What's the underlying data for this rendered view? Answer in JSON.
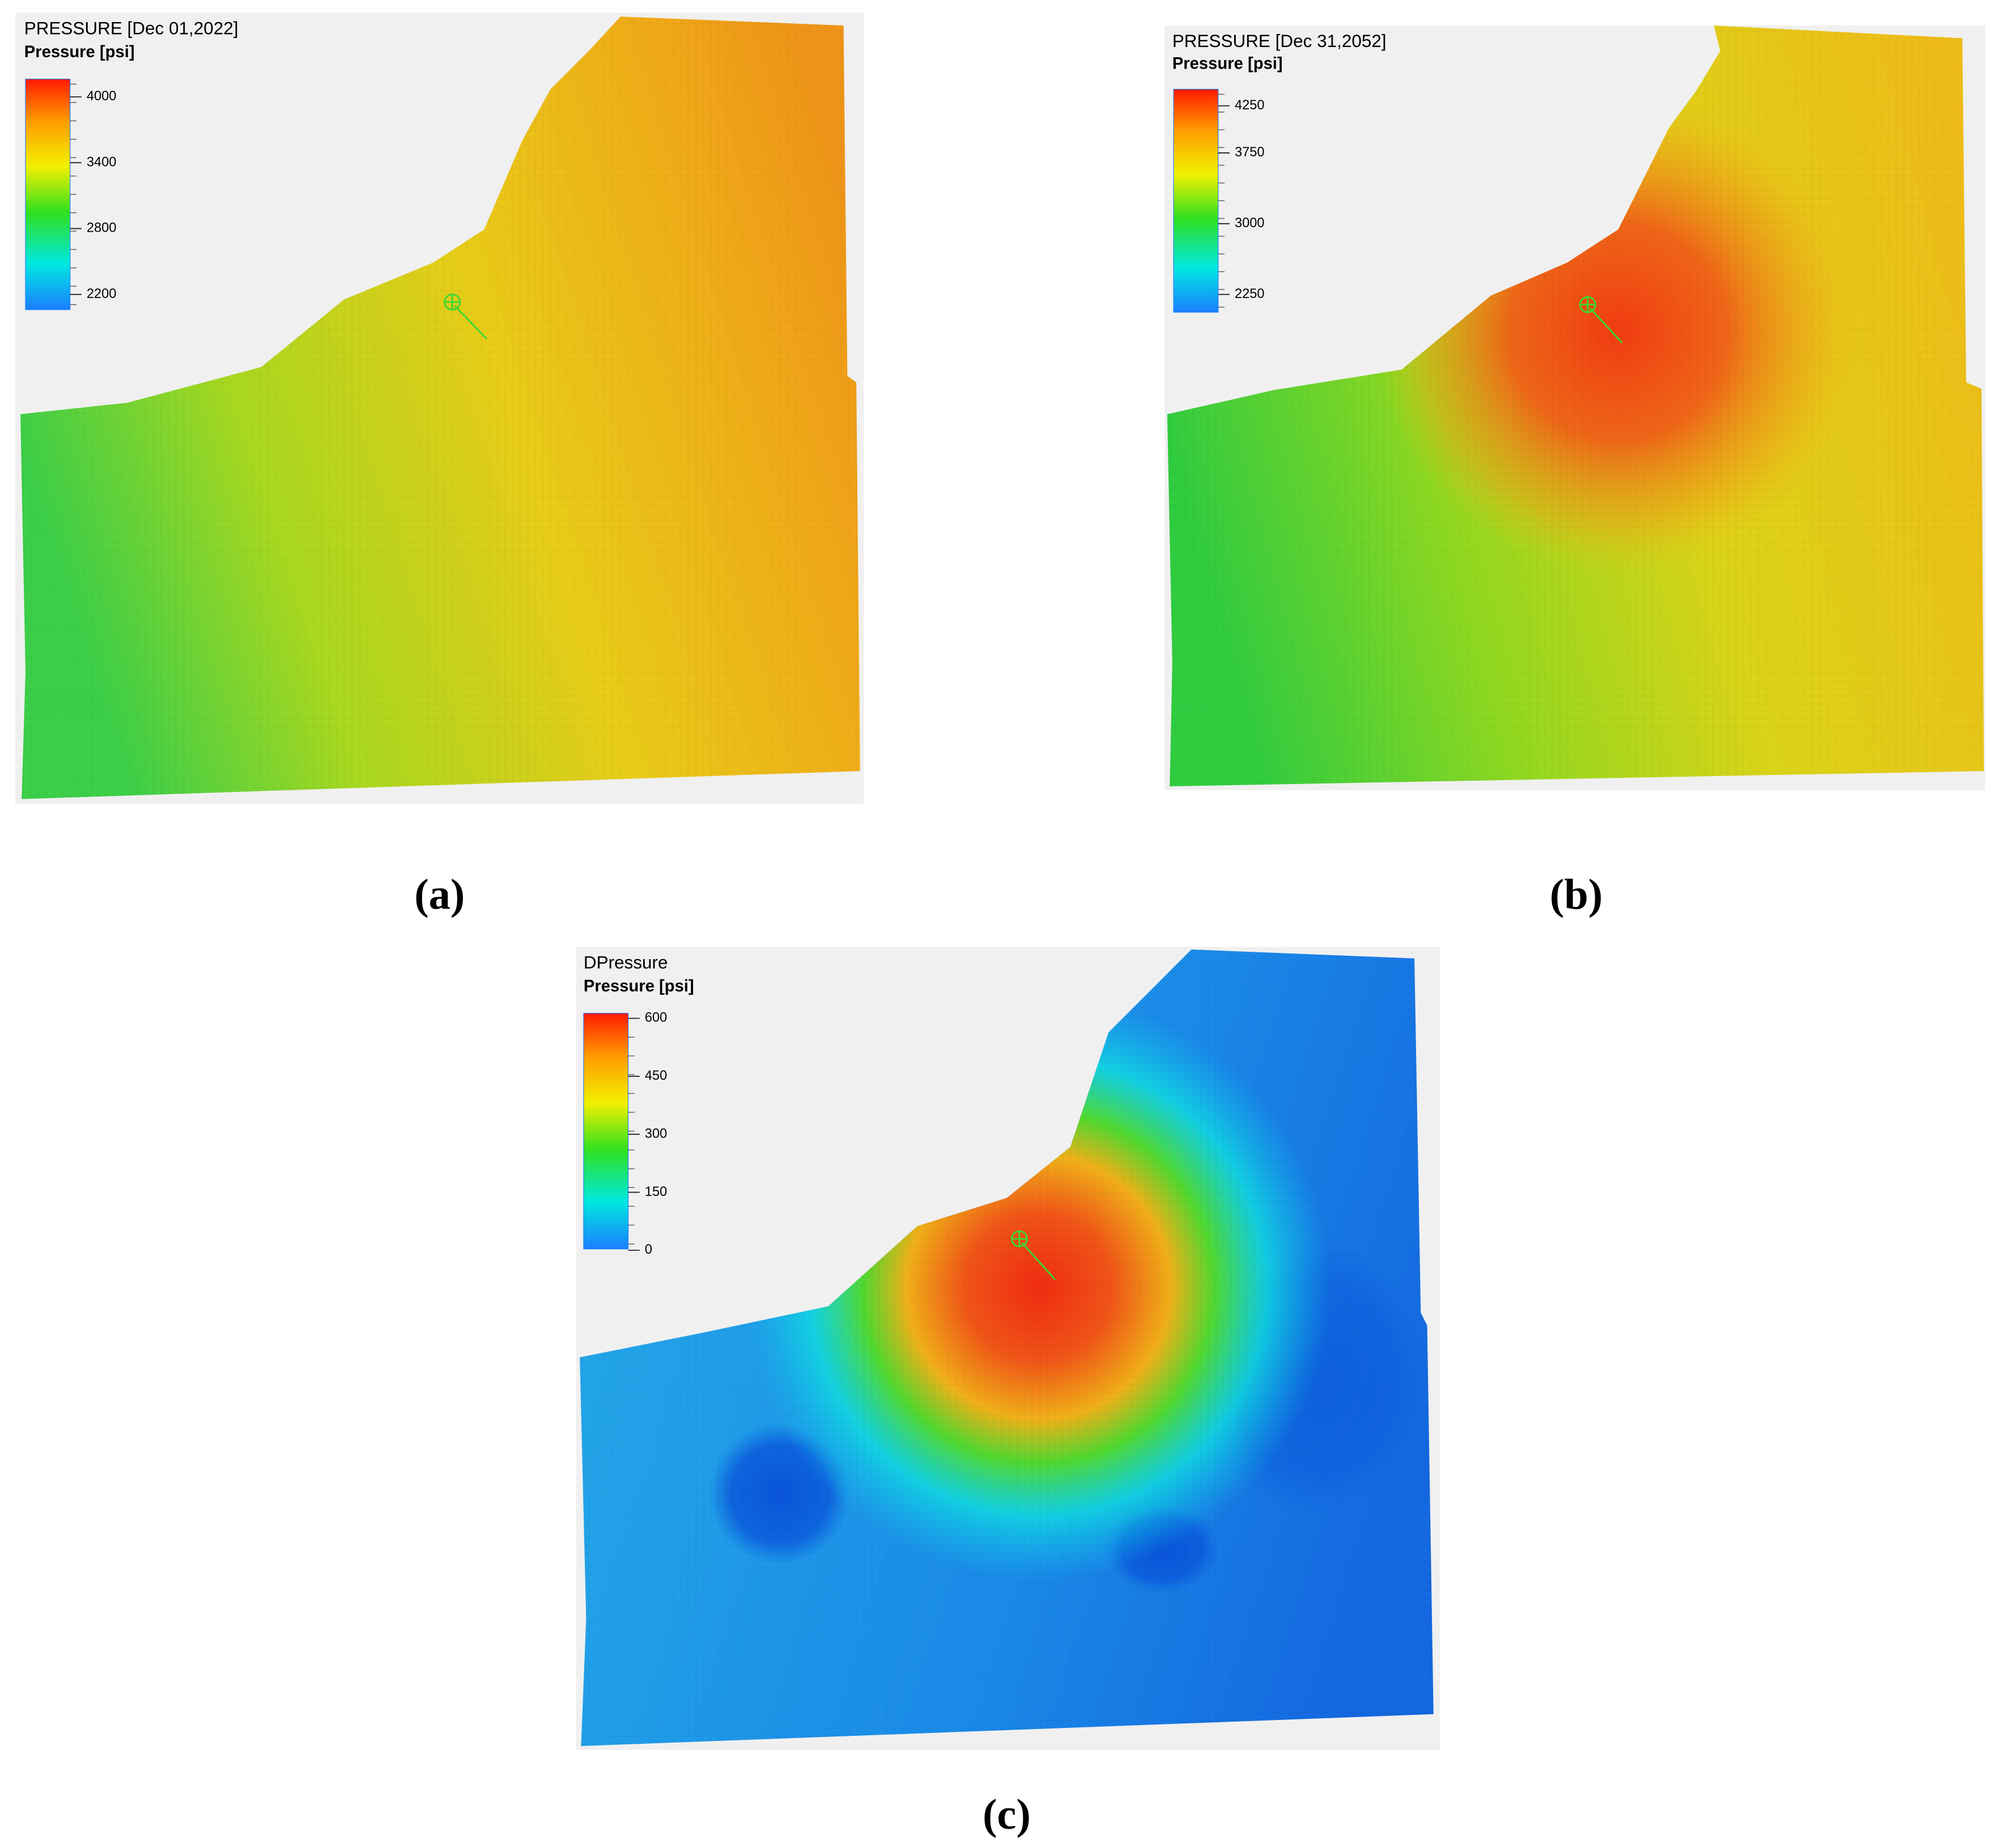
{
  "panels": [
    {
      "title": "PRESSURE [Dec 01,2022]",
      "unit_label": "Pressure [psi]",
      "colorbar_ticks": [
        4000,
        3400,
        2800,
        2200
      ],
      "caption": "(a)"
    },
    {
      "title": "PRESSURE [Dec 31,2052]",
      "unit_label": "Pressure [psi]",
      "colorbar_ticks": [
        4250,
        3750,
        3000,
        2250
      ],
      "caption": "(b)"
    },
    {
      "title": "DPressure",
      "unit_label": "Pressure [psi]",
      "colorbar_ticks": [
        600,
        450,
        300,
        150,
        0
      ],
      "caption": "(c)"
    }
  ]
}
